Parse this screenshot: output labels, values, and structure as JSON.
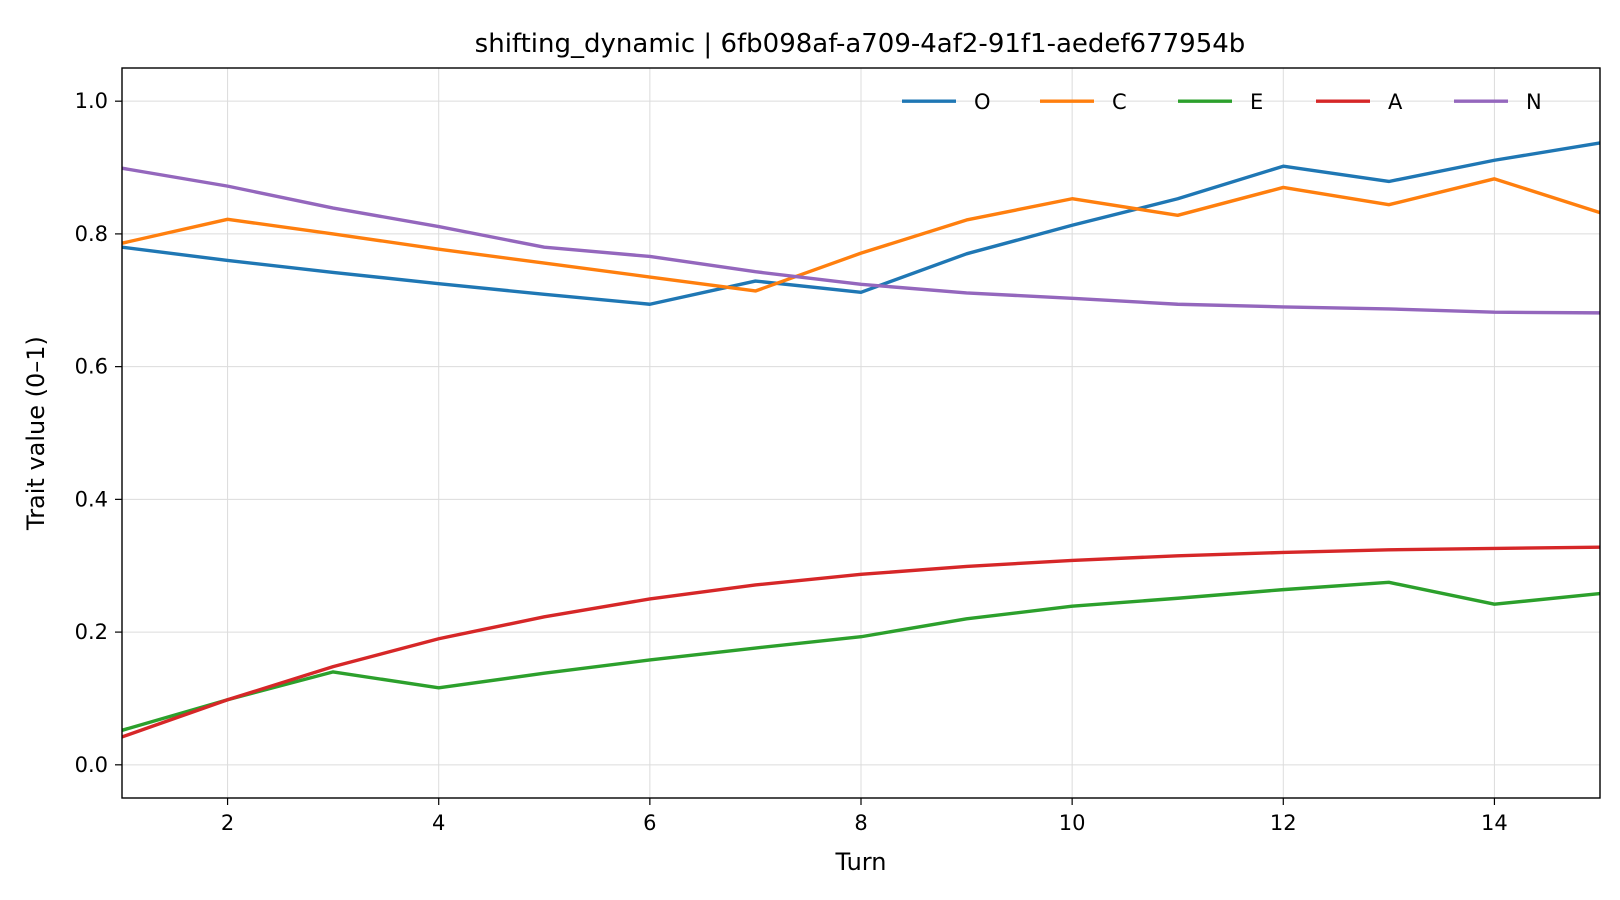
{
  "chart_data": {
    "type": "line",
    "title": "shifting_dynamic | 6fb098af-a709-4af2-91f1-aedef677954b",
    "xlabel": "Turn",
    "ylabel": "Trait value (0–1)",
    "xlim": [
      1,
      15
    ],
    "ylim": [
      -0.05,
      1.05
    ],
    "xticks": [
      2,
      4,
      6,
      8,
      10,
      12,
      14
    ],
    "yticks": [
      "0.0",
      "0.2",
      "0.4",
      "0.6",
      "0.8",
      "1.0"
    ],
    "grid": true,
    "legend_position": "top-right",
    "x": [
      1,
      2,
      3,
      4,
      5,
      6,
      7,
      8,
      9,
      10,
      11,
      12,
      13,
      14,
      15
    ],
    "series": [
      {
        "name": "O",
        "color": "#1f77b4",
        "values": [
          0.78,
          0.76,
          0.742,
          0.725,
          0.709,
          0.694,
          0.729,
          0.712,
          0.77,
          0.813,
          0.853,
          0.902,
          0.879,
          0.911,
          0.937
        ]
      },
      {
        "name": "C",
        "color": "#ff7f0e",
        "values": [
          0.786,
          0.822,
          0.8,
          0.777,
          0.756,
          0.735,
          0.714,
          0.771,
          0.821,
          0.853,
          0.828,
          0.87,
          0.844,
          0.883,
          0.832
        ]
      },
      {
        "name": "E",
        "color": "#2ca02c",
        "values": [
          0.052,
          0.098,
          0.14,
          0.116,
          0.138,
          0.158,
          0.176,
          0.193,
          0.22,
          0.239,
          0.251,
          0.264,
          0.275,
          0.242,
          0.258
        ]
      },
      {
        "name": "A",
        "color": "#d62728",
        "values": [
          0.042,
          0.098,
          0.148,
          0.19,
          0.223,
          0.25,
          0.271,
          0.287,
          0.299,
          0.308,
          0.315,
          0.32,
          0.324,
          0.326,
          0.328
        ]
      },
      {
        "name": "N",
        "color": "#9467bd",
        "values": [
          0.899,
          0.872,
          0.839,
          0.811,
          0.78,
          0.766,
          0.743,
          0.724,
          0.711,
          0.703,
          0.694,
          0.69,
          0.687,
          0.682,
          0.681
        ]
      }
    ]
  }
}
